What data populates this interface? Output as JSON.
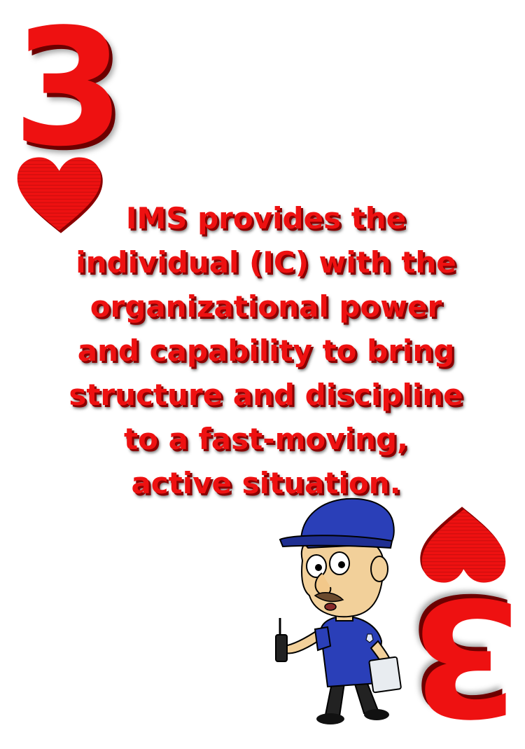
{
  "card": {
    "rank": "3",
    "suit": "heart-icon",
    "accent_color": "#ee1111"
  },
  "message": {
    "lines": [
      "IMS provides the",
      "individual (IC) with the",
      "organizational power",
      "and capability to bring",
      "structure and discipline",
      "to a fast-moving,",
      "active situation."
    ]
  }
}
